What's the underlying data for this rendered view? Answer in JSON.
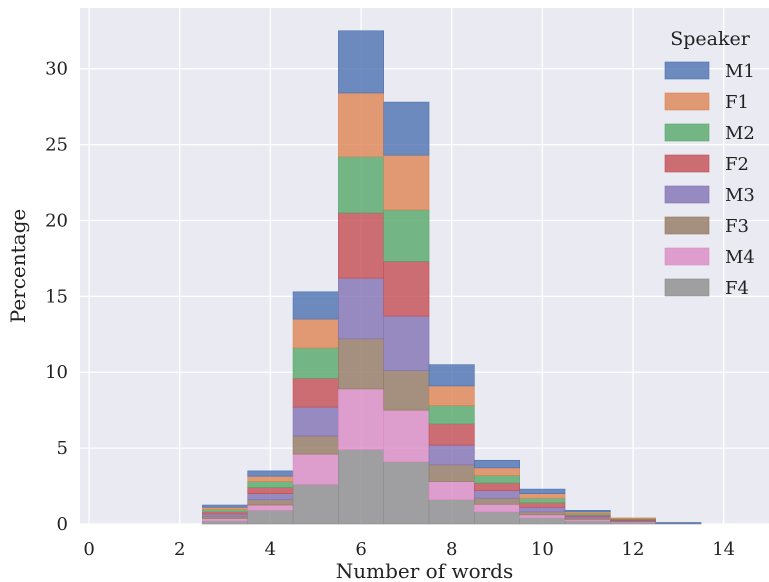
{
  "chart_data": {
    "type": "bar",
    "stacked": true,
    "xlabel": "Number of words",
    "ylabel": "Percentage",
    "xlim": [
      -0.2,
      15.0
    ],
    "ylim": [
      0,
      34
    ],
    "xticks": [
      0,
      2,
      4,
      6,
      8,
      10,
      12,
      14
    ],
    "yticks": [
      0,
      5,
      10,
      15,
      20,
      25,
      30
    ],
    "grid": true,
    "bins": [
      [
        2.5,
        3.5
      ],
      [
        3.5,
        4.5
      ],
      [
        4.5,
        5.5
      ],
      [
        5.5,
        6.5
      ],
      [
        6.5,
        7.5
      ],
      [
        7.5,
        8.5
      ],
      [
        8.5,
        9.5
      ],
      [
        9.5,
        10.5
      ],
      [
        10.5,
        11.5
      ],
      [
        11.5,
        12.5
      ],
      [
        12.5,
        13.5
      ]
    ],
    "cumulative_totals_note": "values are per-speaker bin heights, stacked F4 (bottom) to M1 (top)",
    "legend": {
      "title": "Speaker",
      "position": "top-right"
    },
    "series": [
      {
        "name": "M1",
        "color": "#4c72b0",
        "values": [
          0.15,
          0.35,
          1.8,
          4.1,
          3.5,
          1.4,
          0.5,
          0.3,
          0.1,
          0.0,
          0.05
        ]
      },
      {
        "name": "F1",
        "color": "#dd8452",
        "values": [
          0.15,
          0.35,
          1.9,
          4.2,
          3.6,
          1.3,
          0.5,
          0.3,
          0.1,
          0.05,
          0.0
        ]
      },
      {
        "name": "M2",
        "color": "#55a868",
        "values": [
          0.15,
          0.4,
          2.0,
          3.7,
          3.4,
          1.2,
          0.5,
          0.3,
          0.1,
          0.05,
          0.0
        ]
      },
      {
        "name": "F2",
        "color": "#c44e52",
        "values": [
          0.15,
          0.4,
          1.9,
          4.3,
          3.6,
          1.4,
          0.5,
          0.3,
          0.1,
          0.05,
          0.0
        ]
      },
      {
        "name": "M3",
        "color": "#8172b3",
        "values": [
          0.15,
          0.4,
          1.9,
          4.0,
          3.6,
          1.3,
          0.5,
          0.3,
          0.1,
          0.05,
          0.0
        ]
      },
      {
        "name": "F3",
        "color": "#937860",
        "values": [
          0.15,
          0.35,
          1.2,
          3.3,
          2.6,
          1.1,
          0.4,
          0.2,
          0.1,
          0.05,
          0.0
        ]
      },
      {
        "name": "M4",
        "color": "#da8bc3",
        "values": [
          0.15,
          0.35,
          2.0,
          4.0,
          3.4,
          1.2,
          0.5,
          0.2,
          0.1,
          0.05,
          0.0
        ]
      },
      {
        "name": "F4",
        "color": "#8c8c8c",
        "values": [
          0.2,
          0.9,
          2.6,
          4.9,
          4.1,
          1.6,
          0.8,
          0.4,
          0.2,
          0.1,
          0.05
        ]
      }
    ]
  }
}
